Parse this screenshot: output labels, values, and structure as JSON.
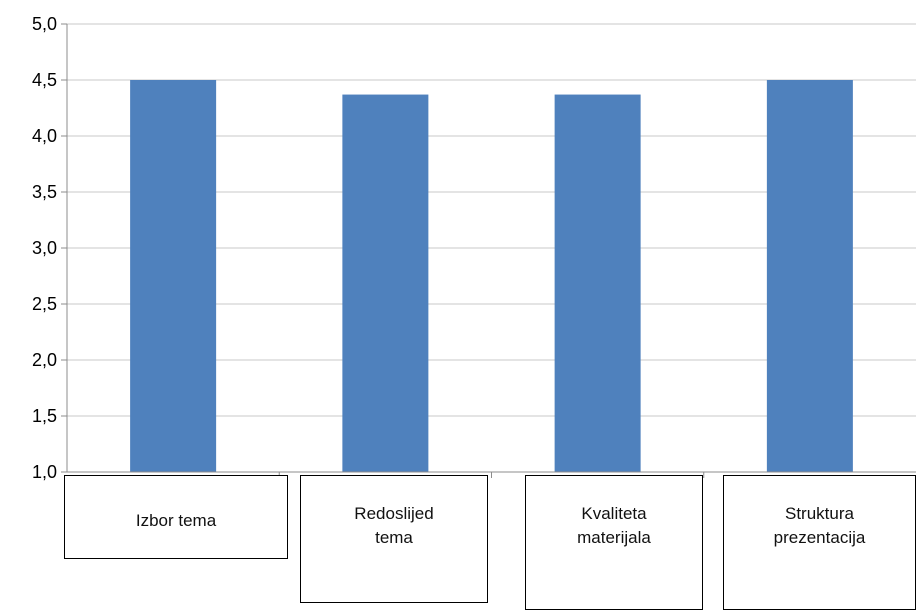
{
  "chart_data": {
    "type": "bar",
    "categories": [
      "Izbor tema",
      "Redoslijed\ntema",
      "Kvaliteta\nmaterijala",
      "Struktura\nprezentacija"
    ],
    "values": [
      4.5,
      4.37,
      4.37,
      4.5
    ],
    "ylim": [
      1.0,
      5.0
    ],
    "y_ticks": [
      "1,0",
      "1,5",
      "2,0",
      "2,5",
      "3,0",
      "3,5",
      "4,0",
      "4,5",
      "5,0"
    ],
    "grid": true,
    "colors": {
      "bar": "#4f81bd",
      "grid": "#c8c8c8",
      "axis": "#8c8c8c"
    }
  }
}
